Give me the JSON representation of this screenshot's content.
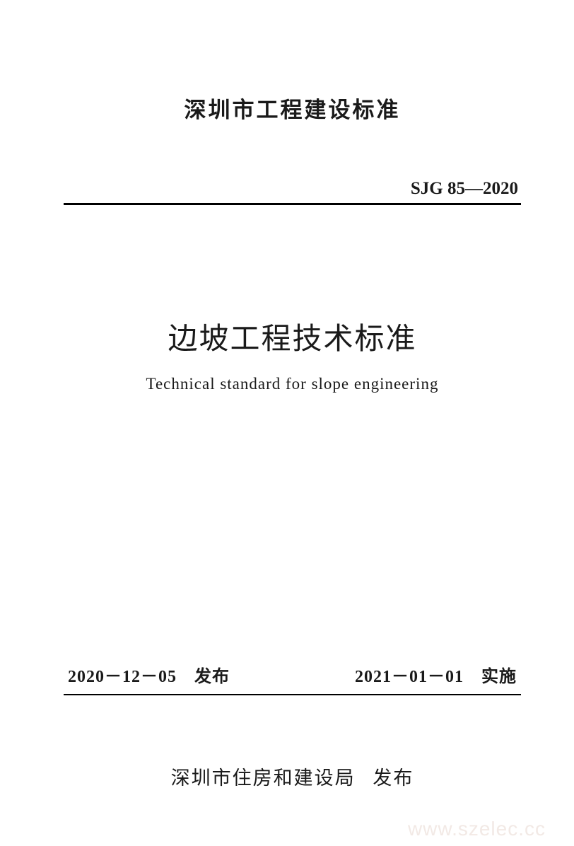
{
  "header": {
    "title": "深圳市工程建设标准"
  },
  "standard": {
    "code": "SJG 85—2020"
  },
  "main": {
    "title_cn": "边坡工程技术标准",
    "title_en": "Technical standard for slope engineering"
  },
  "dates": {
    "publish_date": "2020－12－05",
    "publish_label": "发布",
    "effective_date": "2021－01－01",
    "effective_label": "实施"
  },
  "publisher": {
    "name": "深圳市住房和建设局",
    "action": "发布"
  },
  "watermark": {
    "text": "www.szelec.cc"
  }
}
